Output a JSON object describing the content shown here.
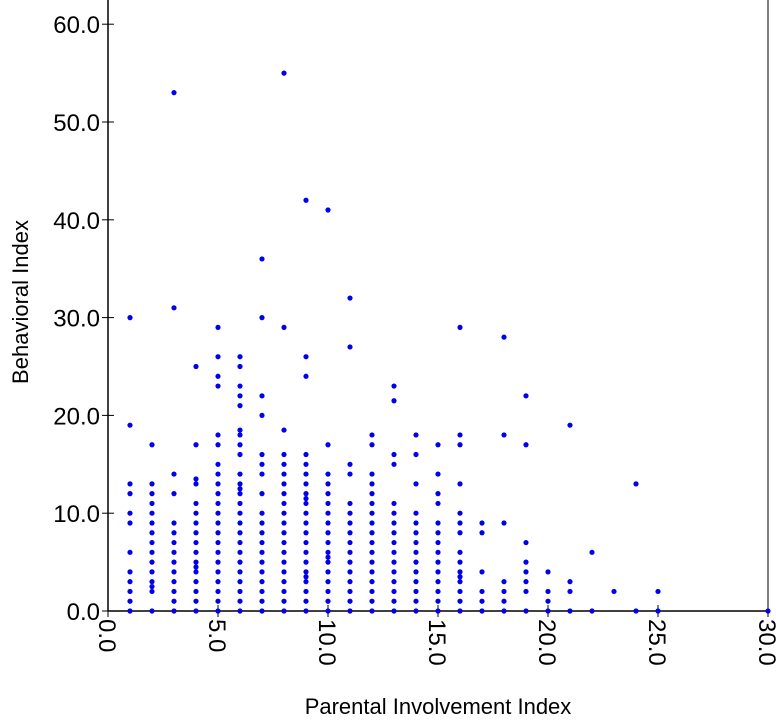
{
  "chart_data": {
    "type": "scatter",
    "xlabel": "Parental Involvement Index",
    "ylabel": "Behavioral Index",
    "xlim": [
      0,
      30
    ],
    "ylim": [
      0,
      62
    ],
    "x_ticks": [
      "0.0",
      "5.0",
      "10.0",
      "15.0",
      "20.0",
      "25.0",
      "30.0"
    ],
    "y_ticks": [
      "0.0",
      "10.0",
      "20.0",
      "30.0",
      "40.0",
      "50.0",
      "60.0"
    ],
    "grid": false,
    "legend": "none",
    "point_color": "#0000ee",
    "series": [
      {
        "points": [
          [
            1,
            0
          ],
          [
            1,
            1
          ],
          [
            1,
            2
          ],
          [
            1,
            3
          ],
          [
            1,
            4
          ],
          [
            1,
            6
          ],
          [
            1,
            9
          ],
          [
            1,
            10
          ],
          [
            1,
            12
          ],
          [
            1,
            13
          ],
          [
            1,
            19
          ],
          [
            1,
            30
          ],
          [
            2,
            0
          ],
          [
            2,
            2
          ],
          [
            2,
            2.5
          ],
          [
            2,
            3
          ],
          [
            2,
            4
          ],
          [
            2,
            5
          ],
          [
            2,
            6
          ],
          [
            2,
            7
          ],
          [
            2,
            8
          ],
          [
            2,
            9
          ],
          [
            2,
            10
          ],
          [
            2,
            11
          ],
          [
            2,
            12
          ],
          [
            2,
            13
          ],
          [
            2,
            17
          ],
          [
            3,
            0
          ],
          [
            3,
            1
          ],
          [
            3,
            2
          ],
          [
            3,
            3
          ],
          [
            3,
            4
          ],
          [
            3,
            5
          ],
          [
            3,
            6
          ],
          [
            3,
            7
          ],
          [
            3,
            8
          ],
          [
            3,
            9
          ],
          [
            3,
            12
          ],
          [
            3,
            14
          ],
          [
            3,
            31
          ],
          [
            3,
            53
          ],
          [
            4,
            0
          ],
          [
            4,
            1
          ],
          [
            4,
            2
          ],
          [
            4,
            3
          ],
          [
            4,
            4
          ],
          [
            4,
            4.5
          ],
          [
            4,
            5
          ],
          [
            4,
            6
          ],
          [
            4,
            7
          ],
          [
            4,
            8
          ],
          [
            4,
            9
          ],
          [
            4,
            10
          ],
          [
            4,
            11
          ],
          [
            4,
            13
          ],
          [
            4,
            13.5
          ],
          [
            4,
            17
          ],
          [
            4,
            25
          ],
          [
            5,
            0
          ],
          [
            5,
            1
          ],
          [
            5,
            2
          ],
          [
            5,
            3
          ],
          [
            5,
            4
          ],
          [
            5,
            5
          ],
          [
            5,
            6
          ],
          [
            5,
            7
          ],
          [
            5,
            8
          ],
          [
            5,
            9
          ],
          [
            5,
            10
          ],
          [
            5,
            11
          ],
          [
            5,
            12
          ],
          [
            5,
            13
          ],
          [
            5,
            14
          ],
          [
            5,
            15
          ],
          [
            5,
            17
          ],
          [
            5,
            18
          ],
          [
            5,
            23
          ],
          [
            5,
            24
          ],
          [
            5,
            26
          ],
          [
            5,
            29
          ],
          [
            6,
            0
          ],
          [
            6,
            1
          ],
          [
            6,
            2
          ],
          [
            6,
            3
          ],
          [
            6,
            4
          ],
          [
            6,
            5
          ],
          [
            6,
            6
          ],
          [
            6,
            7
          ],
          [
            6,
            8
          ],
          [
            6,
            9
          ],
          [
            6,
            10
          ],
          [
            6,
            11
          ],
          [
            6,
            12
          ],
          [
            6,
            12.5
          ],
          [
            6,
            13
          ],
          [
            6,
            14
          ],
          [
            6,
            16
          ],
          [
            6,
            17
          ],
          [
            6,
            18
          ],
          [
            6,
            18.5
          ],
          [
            6,
            21
          ],
          [
            6,
            22
          ],
          [
            6,
            23
          ],
          [
            6,
            25
          ],
          [
            6,
            26
          ],
          [
            7,
            0
          ],
          [
            7,
            1
          ],
          [
            7,
            2
          ],
          [
            7,
            3
          ],
          [
            7,
            4
          ],
          [
            7,
            5
          ],
          [
            7,
            6
          ],
          [
            7,
            7
          ],
          [
            7,
            8
          ],
          [
            7,
            9
          ],
          [
            7,
            10
          ],
          [
            7,
            12
          ],
          [
            7,
            14
          ],
          [
            7,
            15
          ],
          [
            7,
            16
          ],
          [
            7,
            20
          ],
          [
            7,
            22
          ],
          [
            7,
            30
          ],
          [
            7,
            36
          ],
          [
            8,
            0
          ],
          [
            8,
            1
          ],
          [
            8,
            2
          ],
          [
            8,
            3
          ],
          [
            8,
            4
          ],
          [
            8,
            5
          ],
          [
            8,
            6
          ],
          [
            8,
            7
          ],
          [
            8,
            8
          ],
          [
            8,
            9
          ],
          [
            8,
            10
          ],
          [
            8,
            11
          ],
          [
            8,
            12
          ],
          [
            8,
            13
          ],
          [
            8,
            14
          ],
          [
            8,
            15
          ],
          [
            8,
            16
          ],
          [
            8,
            18.5
          ],
          [
            8,
            29
          ],
          [
            8,
            55
          ],
          [
            9,
            0
          ],
          [
            9,
            1
          ],
          [
            9,
            2
          ],
          [
            9,
            3
          ],
          [
            9,
            3.5
          ],
          [
            9,
            4
          ],
          [
            9,
            5
          ],
          [
            9,
            6
          ],
          [
            9,
            7
          ],
          [
            9,
            8
          ],
          [
            9,
            9
          ],
          [
            9,
            10
          ],
          [
            9,
            11
          ],
          [
            9,
            11.5
          ],
          [
            9,
            12
          ],
          [
            9,
            13
          ],
          [
            9,
            14
          ],
          [
            9,
            15
          ],
          [
            9,
            16
          ],
          [
            9,
            24
          ],
          [
            9,
            26
          ],
          [
            9,
            42
          ],
          [
            10,
            0
          ],
          [
            10,
            1
          ],
          [
            10,
            2
          ],
          [
            10,
            3
          ],
          [
            10,
            4
          ],
          [
            10,
            5
          ],
          [
            10,
            5.5
          ],
          [
            10,
            6
          ],
          [
            10,
            7
          ],
          [
            10,
            8
          ],
          [
            10,
            9
          ],
          [
            10,
            10
          ],
          [
            10,
            11
          ],
          [
            10,
            12
          ],
          [
            10,
            13
          ],
          [
            10,
            14
          ],
          [
            10,
            17
          ],
          [
            10,
            41
          ],
          [
            11,
            0
          ],
          [
            11,
            1
          ],
          [
            11,
            2
          ],
          [
            11,
            3
          ],
          [
            11,
            4
          ],
          [
            11,
            5
          ],
          [
            11,
            6
          ],
          [
            11,
            7
          ],
          [
            11,
            8
          ],
          [
            11,
            9
          ],
          [
            11,
            10
          ],
          [
            11,
            11
          ],
          [
            11,
            14
          ],
          [
            11,
            15
          ],
          [
            11,
            27
          ],
          [
            11,
            32
          ],
          [
            12,
            0
          ],
          [
            12,
            1
          ],
          [
            12,
            2
          ],
          [
            12,
            3
          ],
          [
            12,
            4
          ],
          [
            12,
            5
          ],
          [
            12,
            6
          ],
          [
            12,
            7
          ],
          [
            12,
            8
          ],
          [
            12,
            9
          ],
          [
            12,
            10
          ],
          [
            12,
            11
          ],
          [
            12,
            12
          ],
          [
            12,
            13
          ],
          [
            12,
            14
          ],
          [
            12,
            17
          ],
          [
            12,
            18
          ],
          [
            13,
            0
          ],
          [
            13,
            1
          ],
          [
            13,
            2
          ],
          [
            13,
            3
          ],
          [
            13,
            4
          ],
          [
            13,
            5
          ],
          [
            13,
            6
          ],
          [
            13,
            7
          ],
          [
            13,
            8
          ],
          [
            13,
            9
          ],
          [
            13,
            10
          ],
          [
            13,
            11
          ],
          [
            13,
            15
          ],
          [
            13,
            16
          ],
          [
            13,
            21.5
          ],
          [
            13,
            23
          ],
          [
            14,
            0
          ],
          [
            14,
            1
          ],
          [
            14,
            2
          ],
          [
            14,
            3
          ],
          [
            14,
            4
          ],
          [
            14,
            5
          ],
          [
            14,
            6
          ],
          [
            14,
            7
          ],
          [
            14,
            8
          ],
          [
            14,
            9
          ],
          [
            14,
            10
          ],
          [
            14,
            13
          ],
          [
            14,
            16
          ],
          [
            14,
            18
          ],
          [
            15,
            0
          ],
          [
            15,
            1
          ],
          [
            15,
            2
          ],
          [
            15,
            3
          ],
          [
            15,
            4
          ],
          [
            15,
            5
          ],
          [
            15,
            6
          ],
          [
            15,
            7
          ],
          [
            15,
            8
          ],
          [
            15,
            9
          ],
          [
            15,
            11
          ],
          [
            15,
            12
          ],
          [
            15,
            14
          ],
          [
            15,
            17
          ],
          [
            16,
            0
          ],
          [
            16,
            1
          ],
          [
            16,
            2
          ],
          [
            16,
            3
          ],
          [
            16,
            3.5
          ],
          [
            16,
            4
          ],
          [
            16,
            5
          ],
          [
            16,
            6
          ],
          [
            16,
            8
          ],
          [
            16,
            9
          ],
          [
            16,
            10
          ],
          [
            16,
            13
          ],
          [
            16,
            17
          ],
          [
            16,
            18
          ],
          [
            16,
            29
          ],
          [
            17,
            0
          ],
          [
            17,
            1
          ],
          [
            17,
            2
          ],
          [
            17,
            4
          ],
          [
            17,
            8
          ],
          [
            17,
            9
          ],
          [
            18,
            0
          ],
          [
            18,
            1
          ],
          [
            18,
            2
          ],
          [
            18,
            3
          ],
          [
            18,
            9
          ],
          [
            18,
            18
          ],
          [
            18,
            28
          ],
          [
            19,
            0
          ],
          [
            19,
            2
          ],
          [
            19,
            3
          ],
          [
            19,
            4
          ],
          [
            19,
            5
          ],
          [
            19,
            7
          ],
          [
            19,
            17
          ],
          [
            19,
            22
          ],
          [
            20,
            0
          ],
          [
            20,
            1
          ],
          [
            20,
            2
          ],
          [
            20,
            4
          ],
          [
            21,
            0
          ],
          [
            21,
            2
          ],
          [
            21,
            3
          ],
          [
            21,
            19
          ],
          [
            22,
            0
          ],
          [
            22,
            6
          ],
          [
            23,
            2
          ],
          [
            24,
            0
          ],
          [
            24,
            13
          ],
          [
            25,
            0
          ],
          [
            25,
            2
          ],
          [
            30,
            0
          ]
        ]
      }
    ]
  }
}
